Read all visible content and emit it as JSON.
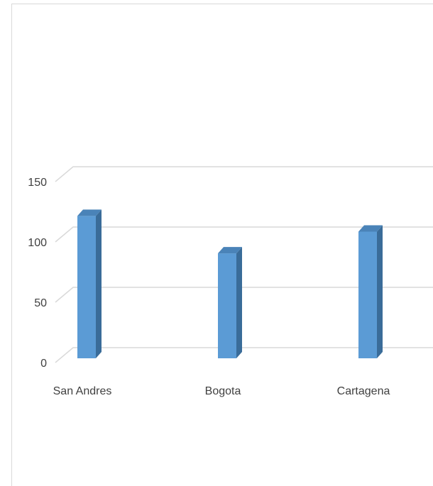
{
  "chart_data": {
    "type": "bar",
    "style": "3d-column",
    "categories": [
      "San Andres",
      "Bogota",
      "Cartagena"
    ],
    "series": [
      {
        "values": [
          118,
          87,
          105
        ],
        "color": "#5B9BD5"
      }
    ],
    "ylim": [
      0,
      150
    ],
    "yticks": [
      "150",
      "100",
      "50",
      "0"
    ],
    "ytick_values": [
      150,
      100,
      50,
      0
    ],
    "title": "",
    "xlabel": "",
    "ylabel": "",
    "grid": true,
    "legend": "none",
    "colors": {
      "front": "#5B9BD5",
      "side": "#3A6C99",
      "top": "#4A83B8",
      "grid": "#d9d9d9",
      "text": "#404040"
    }
  }
}
